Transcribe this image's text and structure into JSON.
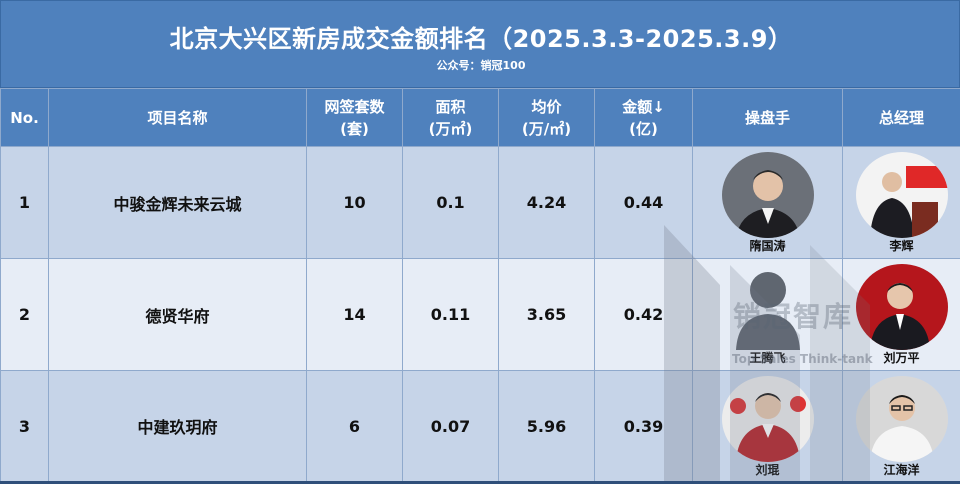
{
  "header": {
    "title": "北京大兴区新房成交金额排名（2025.3.3-2025.3.9）",
    "subtitle": "公众号：销冠100"
  },
  "columns": {
    "no": "No.",
    "project": "项目名称",
    "units_line1": "网签套数",
    "units_line2": "(套)",
    "area_line1": "面积",
    "area_line2": "(万㎡)",
    "price_line1": "均价",
    "price_line2": "(万/㎡)",
    "amount_line1": "金额↓",
    "amount_line2": "(亿)",
    "operator": "操盘手",
    "gm": "总经理"
  },
  "rows": [
    {
      "no": "1",
      "project": "中骏金辉未来云城",
      "units": "10",
      "area": "0.1",
      "price": "4.24",
      "amount": "0.44",
      "operator": "隋国涛",
      "gm": "李辉"
    },
    {
      "no": "2",
      "project": "德贤华府",
      "units": "14",
      "area": "0.11",
      "price": "3.65",
      "amount": "0.42",
      "operator": "王腾飞",
      "gm": "刘万平"
    },
    {
      "no": "3",
      "project": "中建玖玥府",
      "units": "6",
      "area": "0.07",
      "price": "5.96",
      "amount": "0.39",
      "operator": "刘琨",
      "gm": "江海洋"
    }
  ],
  "watermark": {
    "text": "销冠智库",
    "sub": "Top Sales Think-tank"
  },
  "colors": {
    "header_blue": "#4f81bd",
    "row_dark": "#c6d4e8",
    "row_light": "#e7edf6"
  }
}
